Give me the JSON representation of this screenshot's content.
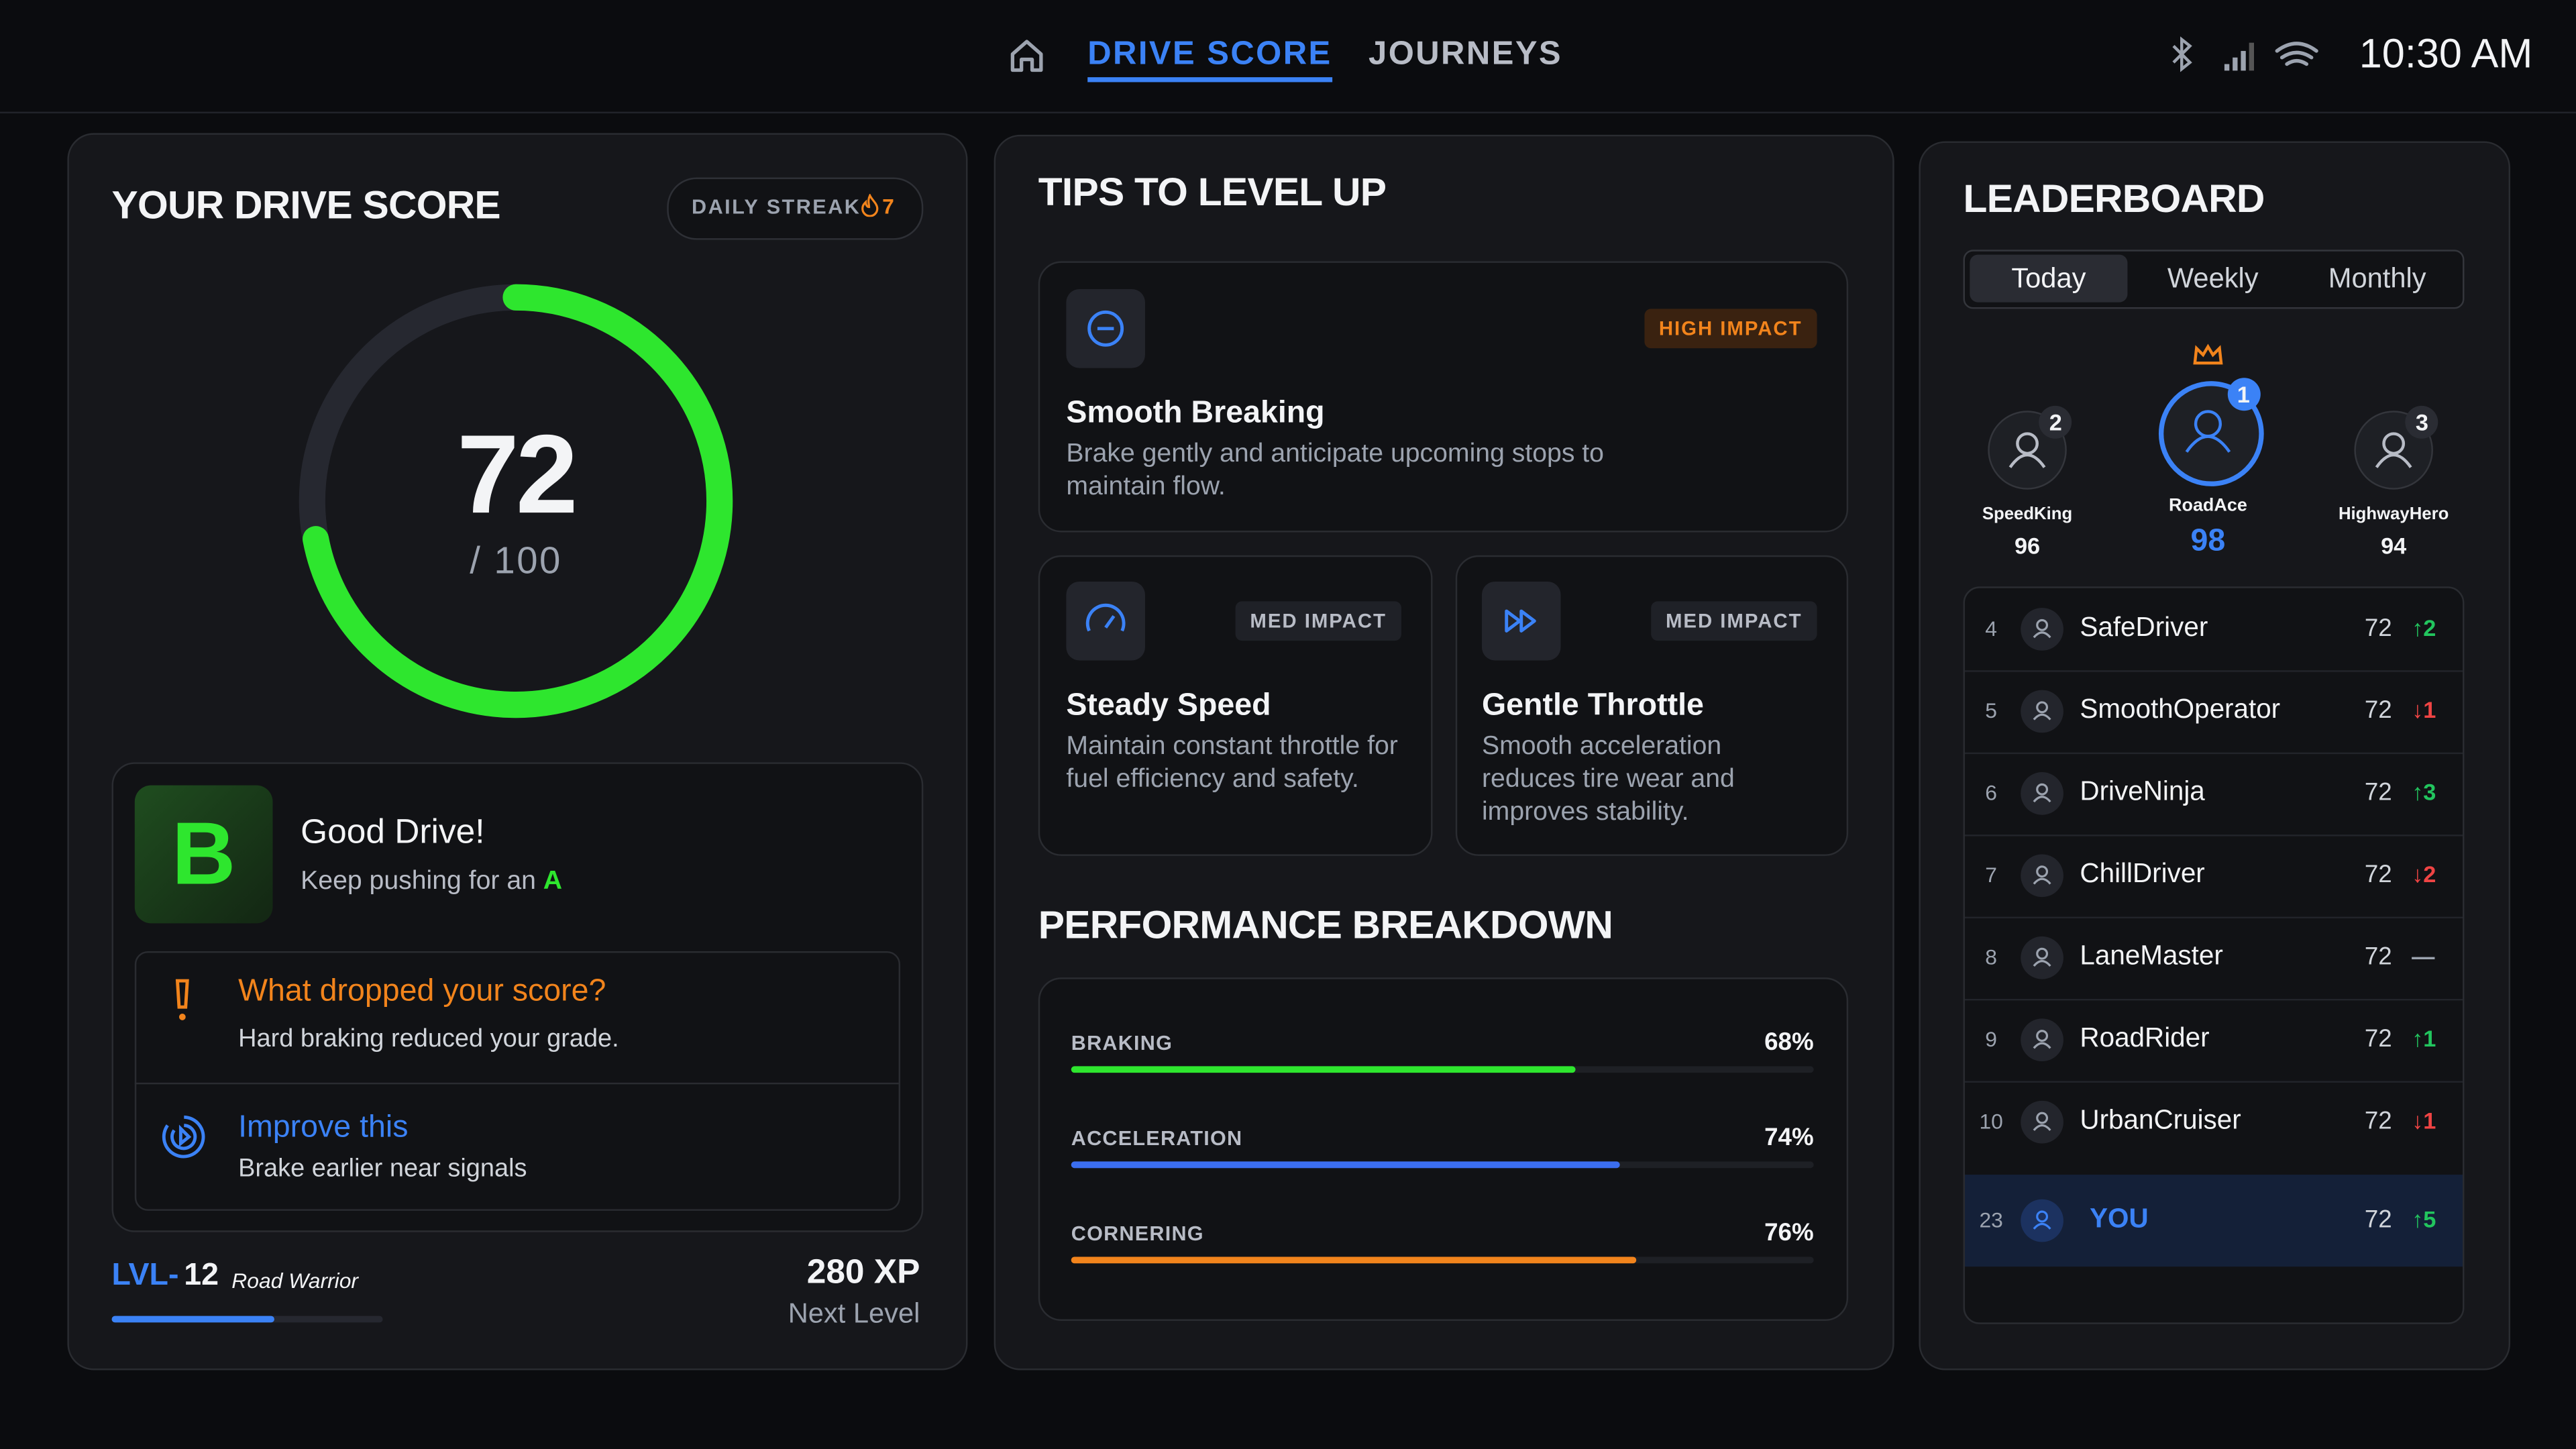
{
  "nav": {
    "tabs": [
      "DRIVE SCORE",
      "JOURNEYS"
    ],
    "time": "10:30 AM"
  },
  "score_panel": {
    "title": "YOUR DRIVE SCORE",
    "streak_label": "DAILY STREAK",
    "streak": "7",
    "score": 72,
    "max": {
      "value": 100,
      "label": "/ 100"
    },
    "ring_color": "#2ee62e",
    "grade": "B",
    "grade_title": "Good Drive!",
    "grade_sub": "Keep pushing for an",
    "grade_target": "A",
    "dropped_title": "What dropped your score?",
    "dropped_text": "Hard braking reduced your grade.",
    "improve_title": "Improve this",
    "improve_text": "Brake earlier near signals",
    "level_prefix": "LVL-",
    "level": "12",
    "level_name": "Road Warrior",
    "xp": "280 XP",
    "xp_sub": "Next Level"
  },
  "tips": {
    "title": "TIPS TO LEVEL UP",
    "items": [
      {
        "impact": "HIGH IMPACT",
        "title": "Smooth Breaking",
        "text": "Brake gently and anticipate upcoming stops to maintain flow."
      },
      {
        "impact": "MED IMPACT",
        "title": "Steady Speed",
        "text": "Maintain constant throttle for fuel efficiency and safety."
      },
      {
        "impact": "MED IMPACT",
        "title": "Gentle Throttle",
        "text": "Smooth acceleration reduces tire wear and improves stability."
      }
    ]
  },
  "performance": {
    "title": "PERFORMANCE BREAKDOWN",
    "items": [
      {
        "label": "BRAKING",
        "value": 68,
        "value_label": "68%",
        "color": "#2ee62e"
      },
      {
        "label": "ACCELERATION",
        "value": 74,
        "value_label": "74%",
        "color": "#3b6ef0"
      },
      {
        "label": "CORNERING",
        "value": 76,
        "value_label": "76%",
        "color": "#f2841c"
      }
    ]
  },
  "leaderboard": {
    "title": "LEADERBOARD",
    "tabs": [
      "Today",
      "Weekly",
      "Monthly"
    ],
    "podium": [
      {
        "rank": "2",
        "name": "SpeedKing",
        "score": "96"
      },
      {
        "rank": "1",
        "name": "RoadAce",
        "score": "98"
      },
      {
        "rank": "3",
        "name": "HighwayHero",
        "score": "94"
      }
    ],
    "rows": [
      {
        "rank": "4",
        "name": "SafeDriver",
        "score": "72",
        "change": "↑2",
        "color": "#22c55e"
      },
      {
        "rank": "5",
        "name": "SmoothOperator",
        "score": "72",
        "change": "↓1",
        "color": "#ef4444"
      },
      {
        "rank": "6",
        "name": "DriveNinja",
        "score": "72",
        "change": "↑3",
        "color": "#22c55e"
      },
      {
        "rank": "7",
        "name": "ChillDriver",
        "score": "72",
        "change": "↓2",
        "color": "#ef4444"
      },
      {
        "rank": "8",
        "name": "LaneMaster",
        "score": "72",
        "change": "—",
        "color": "#9ca3af"
      },
      {
        "rank": "9",
        "name": "RoadRider",
        "score": "72",
        "change": "↑1",
        "color": "#22c55e"
      },
      {
        "rank": "10",
        "name": "UrbanCruiser",
        "score": "72",
        "change": "↓1",
        "color": "#ef4444"
      },
      {
        "rank": "23",
        "name": "YOU",
        "score": "72",
        "change": "↑5",
        "color": "#22c55e"
      }
    ]
  }
}
